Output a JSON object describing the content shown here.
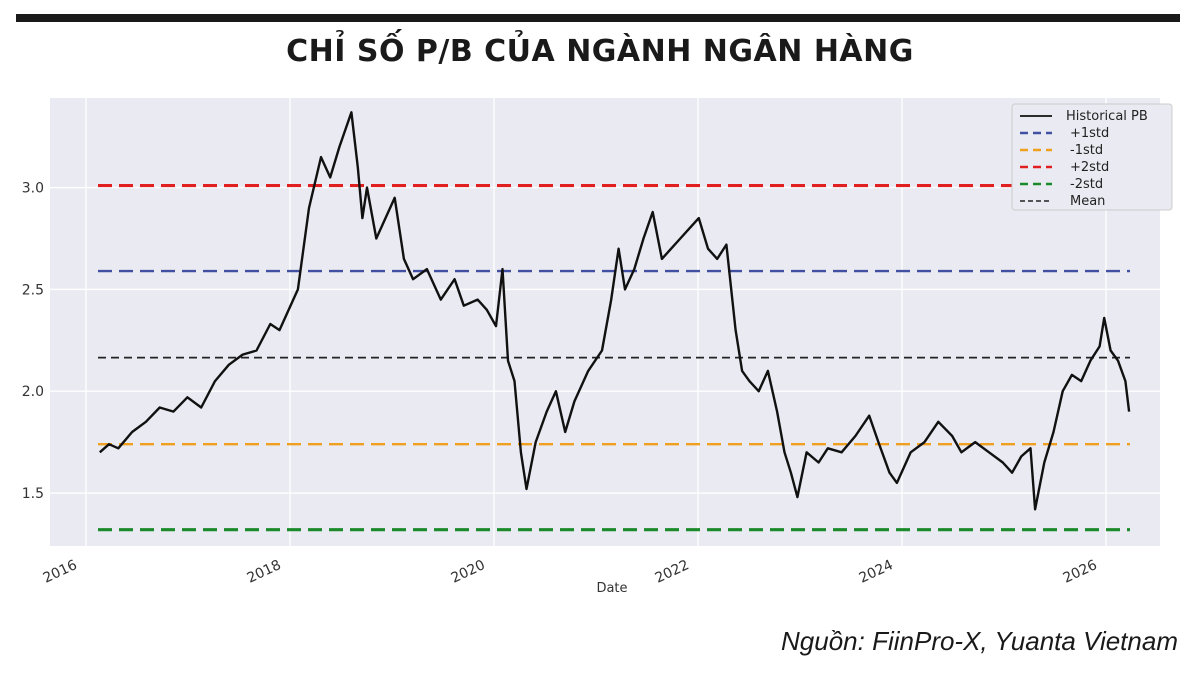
{
  "header": {
    "title": "CHỈ SỐ P/B CỦA NGÀNH NGÂN HÀNG"
  },
  "footer": {
    "source": "Nguồn: FiinPro-X, Yuanta Vietnam"
  },
  "chart_data": {
    "type": "line",
    "xlabel": "Date",
    "ylabel": "",
    "xlim": [
      2016.0,
      2026.4
    ],
    "ylim": [
      1.24,
      3.44
    ],
    "x_ticks": [
      2016,
      2018,
      2020,
      2022,
      2024,
      2026
    ],
    "x_tick_labels": [
      "2016",
      "2018",
      "2020",
      "2022",
      "2024",
      "2026"
    ],
    "y_ticks": [
      1.5,
      2.0,
      2.5,
      3.0
    ],
    "y_tick_labels": [
      "1.5",
      "2.0",
      "2.5",
      "3.0"
    ],
    "grid": true,
    "legend_position": "top-right",
    "reference_lines": [
      {
        "name": "+1std",
        "value": 2.59,
        "color": "#4150a0",
        "style": "dashed"
      },
      {
        "name": "-1std",
        "value": 1.74,
        "color": "#f0a020",
        "style": "dashed"
      },
      {
        "name": "+2std",
        "value": 3.01,
        "color": "#e02020",
        "style": "dashed"
      },
      {
        "name": "-2std",
        "value": 1.32,
        "color": "#1a8a2a",
        "style": "dashed"
      },
      {
        "name": "Mean",
        "value": 2.165,
        "color": "#222222",
        "style": "dashed"
      }
    ],
    "series": [
      {
        "name": "Historical PB",
        "color": "#111111",
        "points": [
          [
            2016.15,
            1.7
          ],
          [
            2016.25,
            1.74
          ],
          [
            2016.35,
            1.72
          ],
          [
            2016.5,
            1.8
          ],
          [
            2016.65,
            1.85
          ],
          [
            2016.8,
            1.92
          ],
          [
            2016.95,
            1.9
          ],
          [
            2017.1,
            1.97
          ],
          [
            2017.25,
            1.92
          ],
          [
            2017.4,
            2.05
          ],
          [
            2017.55,
            2.13
          ],
          [
            2017.7,
            2.18
          ],
          [
            2017.85,
            2.2
          ],
          [
            2018.0,
            2.33
          ],
          [
            2018.1,
            2.3
          ],
          [
            2018.2,
            2.4
          ],
          [
            2018.3,
            2.5
          ],
          [
            2018.42,
            2.9
          ],
          [
            2018.55,
            3.15
          ],
          [
            2018.65,
            3.05
          ],
          [
            2018.75,
            3.2
          ],
          [
            2018.88,
            3.37
          ],
          [
            2018.95,
            3.1
          ],
          [
            2019.0,
            2.85
          ],
          [
            2019.05,
            3.0
          ],
          [
            2019.15,
            2.75
          ],
          [
            2019.25,
            2.85
          ],
          [
            2019.35,
            2.95
          ],
          [
            2019.45,
            2.65
          ],
          [
            2019.55,
            2.55
          ],
          [
            2019.7,
            2.6
          ],
          [
            2019.85,
            2.45
          ],
          [
            2020.0,
            2.55
          ],
          [
            2020.1,
            2.42
          ],
          [
            2020.25,
            2.45
          ],
          [
            2020.35,
            2.4
          ],
          [
            2020.45,
            2.32
          ],
          [
            2020.52,
            2.6
          ],
          [
            2020.58,
            2.15
          ],
          [
            2020.65,
            2.05
          ],
          [
            2020.72,
            1.7
          ],
          [
            2020.78,
            1.52
          ],
          [
            2020.88,
            1.75
          ],
          [
            2021.0,
            1.9
          ],
          [
            2021.1,
            2.0
          ],
          [
            2021.2,
            1.8
          ],
          [
            2021.3,
            1.95
          ],
          [
            2021.45,
            2.1
          ],
          [
            2021.6,
            2.2
          ],
          [
            2021.7,
            2.45
          ],
          [
            2021.78,
            2.7
          ],
          [
            2021.85,
            2.5
          ],
          [
            2021.95,
            2.6
          ],
          [
            2022.05,
            2.75
          ],
          [
            2022.15,
            2.88
          ],
          [
            2022.25,
            2.65
          ],
          [
            2022.35,
            2.7
          ],
          [
            2022.45,
            2.75
          ],
          [
            2022.55,
            2.8
          ],
          [
            2022.65,
            2.85
          ],
          [
            2022.75,
            2.7
          ],
          [
            2022.85,
            2.65
          ],
          [
            2022.95,
            2.72
          ],
          [
            2023.05,
            2.3
          ],
          [
            2023.12,
            2.1
          ],
          [
            2023.2,
            2.05
          ],
          [
            2023.3,
            2.0
          ],
          [
            2023.4,
            2.1
          ],
          [
            2023.5,
            1.9
          ],
          [
            2023.58,
            1.7
          ],
          [
            2023.65,
            1.6
          ],
          [
            2023.72,
            1.48
          ],
          [
            2023.82,
            1.7
          ],
          [
            2023.95,
            1.65
          ],
          [
            2024.05,
            1.72
          ],
          [
            2024.2,
            1.7
          ],
          [
            2024.35,
            1.78
          ],
          [
            2024.5,
            1.88
          ],
          [
            2024.6,
            1.75
          ],
          [
            2024.72,
            1.6
          ],
          [
            2024.8,
            1.55
          ],
          [
            2024.95,
            1.7
          ],
          [
            2025.1,
            1.75
          ],
          [
            2025.25,
            1.85
          ],
          [
            2025.4,
            1.78
          ],
          [
            2025.5,
            1.7
          ],
          [
            2025.65,
            1.75
          ],
          [
            2025.8,
            1.7
          ],
          [
            2025.95,
            1.65
          ],
          [
            2026.05,
            1.6
          ],
          [
            2026.15,
            1.68
          ],
          [
            2026.25,
            1.72
          ],
          [
            2026.3,
            1.42
          ],
          [
            2026.4,
            1.65
          ],
          [
            2026.5,
            1.8
          ],
          [
            2026.6,
            2.0
          ],
          [
            2026.7,
            2.08
          ],
          [
            2026.8,
            2.05
          ],
          [
            2026.9,
            2.15
          ],
          [
            2027.0,
            2.22
          ],
          [
            2027.05,
            2.36
          ],
          [
            2027.12,
            2.2
          ],
          [
            2027.2,
            2.15
          ],
          [
            2027.28,
            2.05
          ],
          [
            2027.32,
            1.9
          ]
        ]
      }
    ],
    "legend": [
      "Historical PB",
      "+1std",
      "-1std",
      "+2std",
      "-2std",
      "Mean"
    ]
  }
}
